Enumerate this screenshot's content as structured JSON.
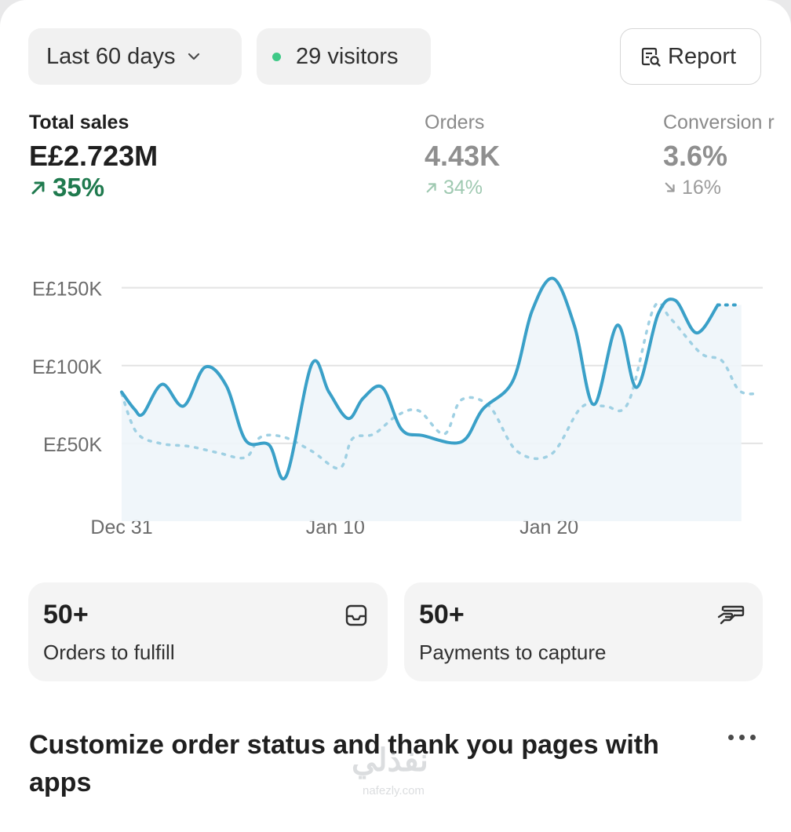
{
  "toolbar": {
    "range_label": "Last 60 days",
    "visitors_label": "29 visitors",
    "report_label": "Report"
  },
  "metrics": [
    {
      "label": "Total sales",
      "value": "E£2.723M",
      "change": "35%",
      "direction": "up"
    },
    {
      "label": "Orders",
      "value": "4.43K",
      "change": "34%",
      "direction": "up"
    },
    {
      "label": "Conversion r",
      "value": "3.6%",
      "change": "16%",
      "direction": "down"
    }
  ],
  "chart_data": {
    "type": "line",
    "ylim": [
      0,
      170000
    ],
    "y_ticks": [
      {
        "value": 50000,
        "label": "E£50K"
      },
      {
        "value": 100000,
        "label": "E£100K"
      },
      {
        "value": 150000,
        "label": "E£150K"
      }
    ],
    "x_ticks": [
      {
        "day": 0,
        "label": "Dec 31"
      },
      {
        "day": 10,
        "label": "Jan 10"
      },
      {
        "day": 20,
        "label": "Jan 20"
      }
    ],
    "x_range": [
      0,
      30
    ],
    "grid": true,
    "colors": {
      "current": "#3aa0c8",
      "previous": "#9fd0e3",
      "grid": "#e3e3e3"
    },
    "series": [
      {
        "style": "solid",
        "points": [
          [
            0,
            83000
          ],
          [
            0.6,
            72000
          ],
          [
            1,
            69000
          ],
          [
            1.9,
            88000
          ],
          [
            2.9,
            74000
          ],
          [
            3.9,
            99000
          ],
          [
            4.9,
            87000
          ],
          [
            5.8,
            52000
          ],
          [
            6.9,
            49000
          ],
          [
            7.7,
            29000
          ],
          [
            8.9,
            101000
          ],
          [
            9.7,
            83000
          ],
          [
            10.6,
            66000
          ],
          [
            11.3,
            79000
          ],
          [
            12.2,
            86000
          ],
          [
            13.1,
            59000
          ],
          [
            14.1,
            55000
          ],
          [
            15.9,
            51000
          ],
          [
            16.9,
            72000
          ],
          [
            18.3,
            90000
          ],
          [
            19.2,
            135000
          ],
          [
            20.2,
            156000
          ],
          [
            21.2,
            125000
          ],
          [
            22.1,
            75000
          ],
          [
            23.2,
            126000
          ],
          [
            24.1,
            86000
          ],
          [
            25.1,
            133000
          ],
          [
            25.9,
            142000
          ],
          [
            26.9,
            121000
          ],
          [
            27.9,
            139000
          ]
        ],
        "projected": [
          [
            27.9,
            139000
          ],
          [
            29.0,
            139000
          ]
        ]
      },
      {
        "style": "dashed",
        "points": [
          [
            0,
            82000
          ],
          [
            0.7,
            57000
          ],
          [
            1.8,
            50000
          ],
          [
            3.2,
            48000
          ],
          [
            4.5,
            44000
          ],
          [
            5.8,
            41000
          ],
          [
            6.5,
            54000
          ],
          [
            7.6,
            54000
          ],
          [
            8.9,
            45000
          ],
          [
            10.2,
            34000
          ],
          [
            10.8,
            53000
          ],
          [
            11.8,
            56000
          ],
          [
            12.9,
            68000
          ],
          [
            13.9,
            71000
          ],
          [
            15.1,
            56000
          ],
          [
            15.9,
            78000
          ],
          [
            17.2,
            74000
          ],
          [
            18.5,
            45000
          ],
          [
            20.1,
            43000
          ],
          [
            21.5,
            73000
          ],
          [
            22.6,
            74000
          ],
          [
            23.7,
            76000
          ],
          [
            24.9,
            137000
          ],
          [
            25.7,
            130000
          ],
          [
            27.1,
            108000
          ],
          [
            28.1,
            103000
          ],
          [
            28.9,
            84000
          ],
          [
            29.8,
            82000
          ]
        ]
      }
    ]
  },
  "tiles": [
    {
      "value": "50+",
      "label": "Orders to fulfill",
      "icon": "inbox-icon"
    },
    {
      "value": "50+",
      "label": "Payments to capture",
      "icon": "card-hand-icon"
    }
  ],
  "promo": {
    "title": "Customize order status and thank you pages with apps"
  },
  "watermark": {
    "text_ar": "نفذلي",
    "text_en": "nafezly.com"
  }
}
